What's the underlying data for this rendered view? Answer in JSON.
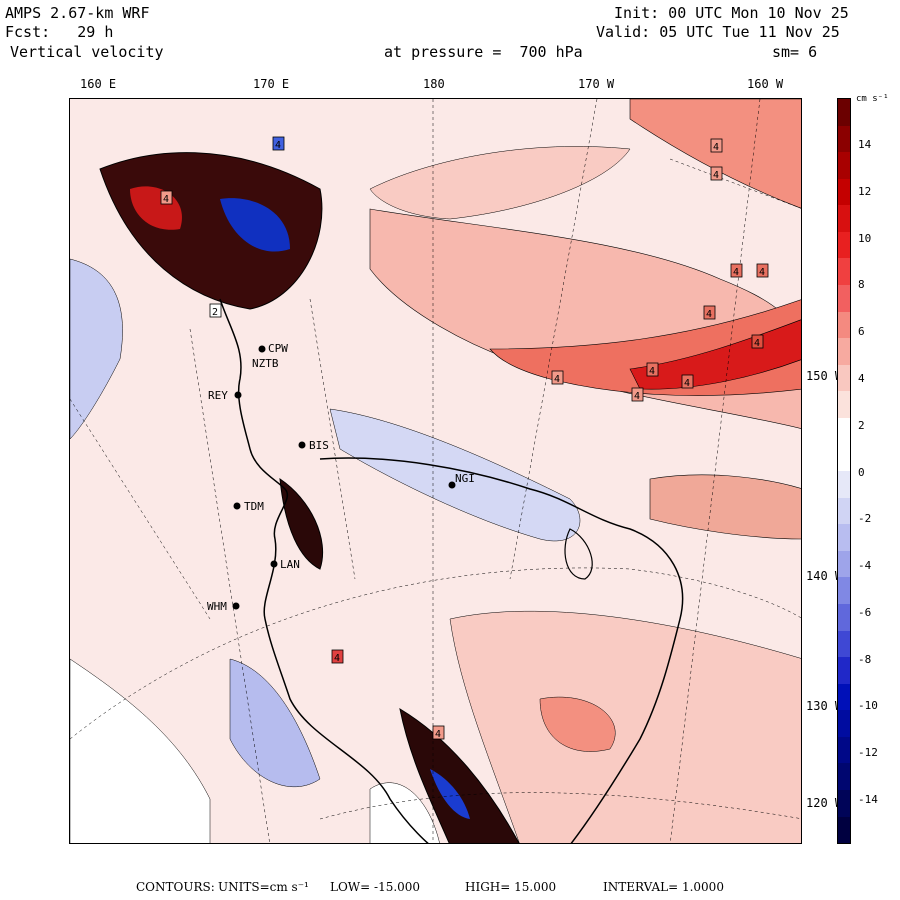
{
  "header": {
    "model": "AMPS 2.67-km WRF",
    "fcst": "Fcst:   29 h",
    "field": "Vertical velocity",
    "init": "Init: 00 UTC Mon 10 Nov 25",
    "valid": "Valid: 05 UTC Tue 11 Nov 25",
    "pressure": "at pressure =  700 hPa",
    "smoothing": "sm= 6"
  },
  "longitude_labels": [
    "160 E",
    "170 E",
    "180",
    "170 W",
    "160 W"
  ],
  "latitude_labels": [
    "150 W",
    "140 W",
    "130 W",
    "120 W"
  ],
  "stations": [
    "CPW",
    "NZTB",
    "REY",
    "BIS",
    "NGI",
    "TDM",
    "LAN",
    "WHM"
  ],
  "contour_box_labels": [
    "4",
    "4",
    "4",
    "4",
    "4",
    "4",
    "4",
    "4",
    "4",
    "4",
    "4",
    "4",
    "4",
    "2",
    "4"
  ],
  "colorbar": {
    "units": "cm s⁻¹",
    "ticks": [
      "14",
      "12",
      "10",
      "8",
      "6",
      "4",
      "2",
      "0",
      "-2",
      "-4",
      "-6",
      "-8",
      "-10",
      "-12",
      "-14"
    ],
    "colors": [
      "#6b0000",
      "#8b0000",
      "#a80000",
      "#c40000",
      "#d81010",
      "#e82020",
      "#f04040",
      "#f26060",
      "#f48a80",
      "#f7aaa0",
      "#f9c8c0",
      "#fbe2dc",
      "#ffffff",
      "#ffffff",
      "#e6e8f8",
      "#d0d4f4",
      "#b8bdf0",
      "#9ea4ea",
      "#8088e4",
      "#6068dc",
      "#3f48d4",
      "#2028c8",
      "#0010b8",
      "#000ca0",
      "#000888",
      "#000670",
      "#000458",
      "#000040"
    ]
  },
  "footer": {
    "contours_label": "CONTOURS:",
    "units": "UNITS=cm s⁻¹",
    "low": "LOW= -15.000",
    "high": "HIGH=  15.000",
    "interval": "INTERVAL=   1.0000"
  }
}
